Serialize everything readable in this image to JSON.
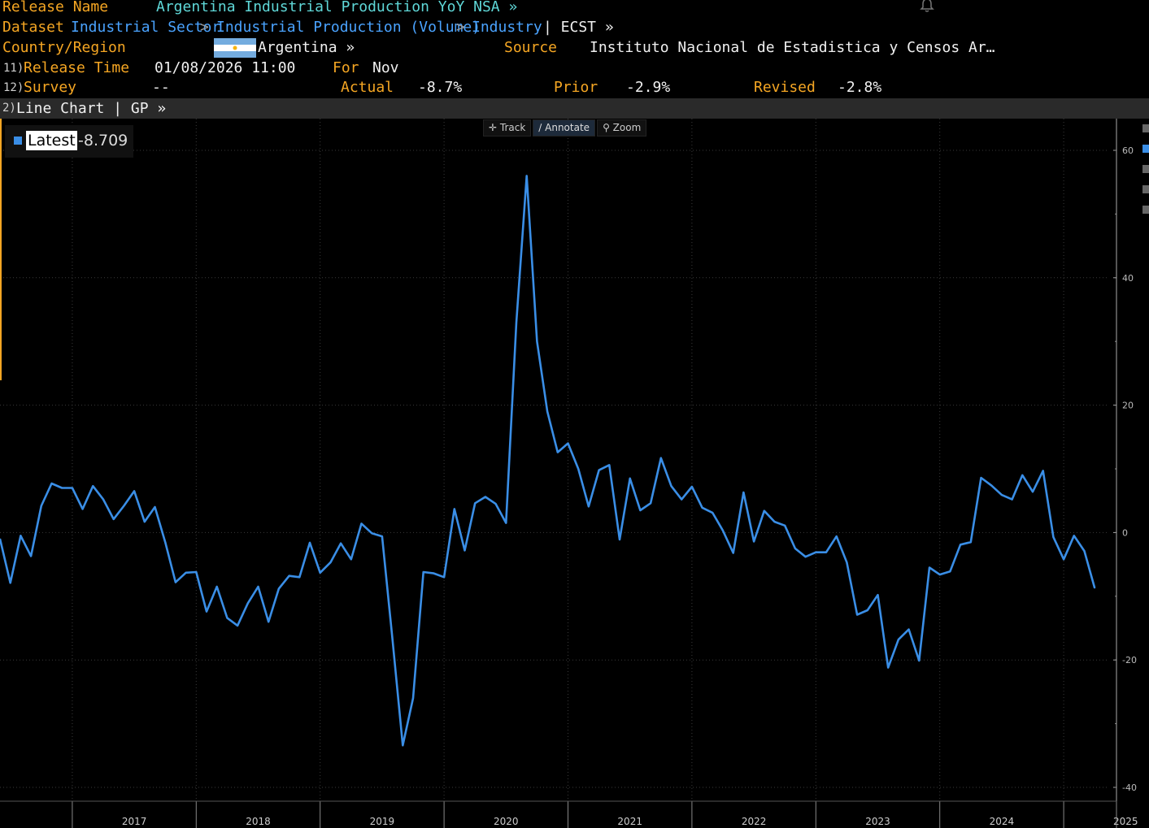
{
  "header": {
    "release_name_label": "Release Name",
    "release_name_value": "Argentina Industrial Production YoY NSA »",
    "dataset_label": "Dataset",
    "breadcrumb": [
      "Industrial Sector",
      "Industrial Production (Volume)",
      "Industry"
    ],
    "breadcrumb_sep": ">",
    "ecst": "| ECST »",
    "country_label": "Country/Region",
    "country_value": "Argentina »",
    "source_label": "Source",
    "source_value": "Instituto Nacional de Estadistica y Censos Ar…",
    "release_time_num": "11)",
    "release_time_label": "Release Time",
    "release_time_value": "01/08/2026 11:00",
    "for_label": "For",
    "for_value": "Nov",
    "survey_num": "12)",
    "survey_label": "Survey",
    "survey_value": "--",
    "actual_label": "Actual",
    "actual_value": "-8.7%",
    "prior_label": "Prior",
    "prior_value": "-2.9%",
    "revised_label": "Revised",
    "revised_value": "-2.8%"
  },
  "chart_bar": {
    "num": "2)",
    "title": "Line Chart | GP »"
  },
  "toolbar": {
    "track": "Track",
    "annotate": "Annotate",
    "zoom": "Zoom"
  },
  "legend": {
    "name": "Latest",
    "value": "-8.709",
    "color": "#3a8ee6"
  },
  "colors": {
    "accent_orange": "#f5a623",
    "link_blue": "#4aa3ff",
    "series_blue": "#3a8ee6",
    "background": "#000000"
  },
  "chart_data": {
    "type": "line",
    "title": "",
    "xlabel": "",
    "ylabel": "",
    "ylim": [
      -40,
      60
    ],
    "yticks": [
      60,
      40,
      20,
      0,
      -20,
      -40
    ],
    "year_labels": [
      "2017",
      "2018",
      "2019",
      "2020",
      "2021",
      "2022",
      "2023",
      "2024",
      "2025"
    ],
    "x_start": "2016-06",
    "grid": true,
    "series": [
      {
        "name": "Latest",
        "values": [
          -1.0,
          -7.9,
          -0.5,
          -3.7,
          4.2,
          7.7,
          7.0,
          7.0,
          3.7,
          7.3,
          5.2,
          2.1,
          4.2,
          6.5,
          1.7,
          4.0,
          -1.5,
          -7.8,
          -6.3,
          -6.2,
          -12.4,
          -8.5,
          -13.4,
          -14.6,
          -11.1,
          -8.5,
          -14.0,
          -8.8,
          -6.8,
          -7.0,
          -1.6,
          -6.3,
          -4.7,
          -1.7,
          -4.2,
          1.4,
          -0.1,
          -0.6,
          -16.7,
          -33.4,
          -26.0,
          -6.2,
          -6.4,
          -7.0,
          3.7,
          -2.8,
          4.6,
          5.6,
          4.5,
          1.5,
          33.0,
          56.0,
          30.0,
          19.0,
          12.6,
          14.0,
          10.0,
          4.1,
          9.8,
          10.6,
          -1.1,
          8.5,
          3.5,
          4.6,
          11.7,
          7.3,
          5.2,
          7.2,
          3.9,
          3.1,
          0.3,
          -3.2,
          6.3,
          -1.4,
          3.4,
          1.7,
          1.1,
          -2.5,
          -3.8,
          -3.1,
          -3.1,
          -0.6,
          -4.7,
          -12.9,
          -12.2,
          -9.8,
          -21.2,
          -16.8,
          -15.2,
          -20.1,
          -5.5,
          -6.6,
          -6.1,
          -1.9,
          -1.5,
          8.6,
          7.4,
          5.9,
          5.2,
          9.0,
          6.4,
          9.7,
          -0.7,
          -4.2,
          -0.5,
          -2.9,
          -8.7
        ]
      }
    ]
  }
}
